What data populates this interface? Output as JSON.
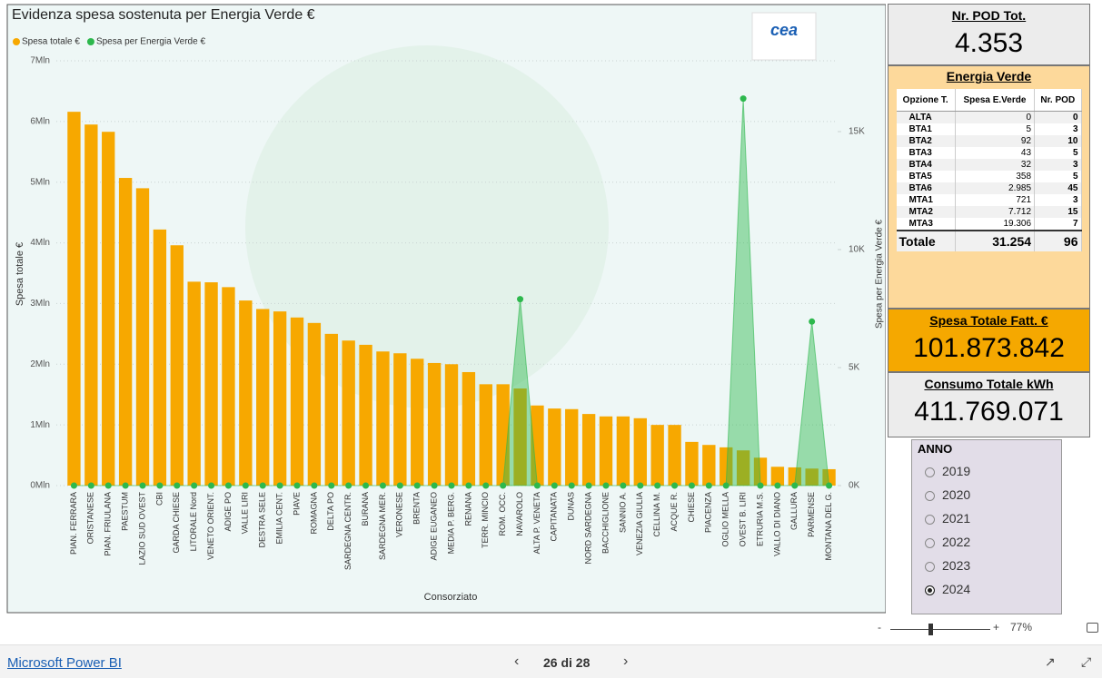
{
  "chart_data": {
    "type": "bar",
    "title": "Evidenza spesa sostenuta per Energia Verde €",
    "x_label": "Consorziato",
    "y_label": "Spesa totale €",
    "y2_label": "Spesa per Energia Verde €",
    "grid": true,
    "categories": [
      "PIAN. FERRARA",
      "ORISTANESE",
      "PIAN. FRIULANA",
      "PAESTUM",
      "LAZIO SUD OVEST",
      "CBI",
      "GARDA CHIESE",
      "LITORALE Nord",
      "VENETO ORIENT.",
      "ADIGE PO",
      "VALLE LIRI",
      "DESTRA SELE",
      "EMILIA CENT.",
      "PIAVE",
      "ROMAGNA",
      "DELTA PO",
      "SARDEGNA CENTR.",
      "BURANA",
      "SARDEGNA MER.",
      "VERONESE",
      "BRENTA",
      "ADIGE EUGANEO",
      "MEDIA P. BERG.",
      "RENANA",
      "TERR. MINCIO",
      "ROM. OCC.",
      "NAVAROLO",
      "ALTA P. VENETA",
      "CAPITANATA",
      "DUNAS",
      "NORD SARDEGNA",
      "BACCHIGLIONE",
      "SANNIO A.",
      "VENEZIA GIULIA",
      "CELLINA M.",
      "ACQUE R.",
      "CHIESE",
      "PIACENZA",
      "OGLIO MELLA",
      "OVEST B. LIRI",
      "ETRURIA M.S.",
      "VALLO DI DIANO",
      "GALLURA",
      "PARMENSE",
      "MONTANA DEL G."
    ],
    "series": [
      {
        "name": "Spesa totale €",
        "color": "#f7a800",
        "type": "bar",
        "values": [
          6160000,
          5950000,
          5830000,
          5070000,
          4900000,
          4220000,
          3960000,
          3360000,
          3350000,
          3270000,
          3050000,
          2910000,
          2870000,
          2770000,
          2680000,
          2500000,
          2390000,
          2320000,
          2210000,
          2180000,
          2090000,
          2020000,
          2000000,
          1870000,
          1670000,
          1670000,
          1600000,
          1320000,
          1270000,
          1260000,
          1180000,
          1140000,
          1140000,
          1110000,
          1000000,
          1000000,
          720000,
          670000,
          630000,
          580000,
          460000,
          310000,
          300000,
          280000,
          270000
        ]
      },
      {
        "name": "Spesa per Energia Verde €",
        "color": "#2db84d",
        "type": "area",
        "axis": "y2",
        "values": [
          0,
          0,
          0,
          0,
          0,
          0,
          0,
          0,
          0,
          0,
          0,
          0,
          0,
          0,
          0,
          0,
          0,
          0,
          0,
          0,
          0,
          0,
          0,
          0,
          0,
          0,
          7900,
          0,
          0,
          0,
          0,
          0,
          0,
          0,
          0,
          0,
          0,
          0,
          0,
          16400,
          0,
          0,
          0,
          6950,
          0
        ]
      }
    ],
    "ylim": [
      0,
      7000000
    ],
    "yticks": [
      {
        "value": 0,
        "label": "0Mln"
      },
      {
        "value": 1000000,
        "label": "1Mln"
      },
      {
        "value": 2000000,
        "label": "2Mln"
      },
      {
        "value": 3000000,
        "label": "3Mln"
      },
      {
        "value": 4000000,
        "label": "4Mln"
      },
      {
        "value": 5000000,
        "label": "5Mln"
      },
      {
        "value": 6000000,
        "label": "6Mln"
      },
      {
        "value": 7000000,
        "label": "7Mln"
      }
    ],
    "y2lim": [
      0,
      18000
    ],
    "y2ticks": [
      {
        "value": 0,
        "label": "0K"
      },
      {
        "value": 5000,
        "label": "5K"
      },
      {
        "value": 10000,
        "label": "10K"
      },
      {
        "value": 15000,
        "label": "15K"
      }
    ]
  },
  "logo": "cea",
  "cards": {
    "pod": {
      "title": "Nr. POD Tot.",
      "value": "4.353"
    },
    "spesa": {
      "title": "Spesa Totale Fatt. €",
      "value": "101.873.842"
    },
    "consumo": {
      "title": "Consumo Totale kWh",
      "value": "411.769.071"
    }
  },
  "table": {
    "title": "Energia Verde",
    "columns": [
      "Opzione T.",
      "Spesa E.Verde",
      "Nr. POD"
    ],
    "rows": [
      [
        "ALTA",
        "0",
        "0"
      ],
      [
        "BTA1",
        "5",
        "3"
      ],
      [
        "BTA2",
        "92",
        "10"
      ],
      [
        "BTA3",
        "43",
        "5"
      ],
      [
        "BTA4",
        "32",
        "3"
      ],
      [
        "BTA5",
        "358",
        "5"
      ],
      [
        "BTA6",
        "2.985",
        "45"
      ],
      [
        "MTA1",
        "721",
        "3"
      ],
      [
        "MTA2",
        "7.712",
        "15"
      ],
      [
        "MTA3",
        "19.306",
        "7"
      ]
    ],
    "total": [
      "Totale",
      "31.254",
      "96"
    ]
  },
  "slicer": {
    "title": "ANNO",
    "options": [
      "2019",
      "2020",
      "2021",
      "2022",
      "2023",
      "2024"
    ],
    "selected_index": 5
  },
  "footer": {
    "brand": "Microsoft Power BI",
    "page": "26 di 28",
    "zoom": "77%"
  }
}
